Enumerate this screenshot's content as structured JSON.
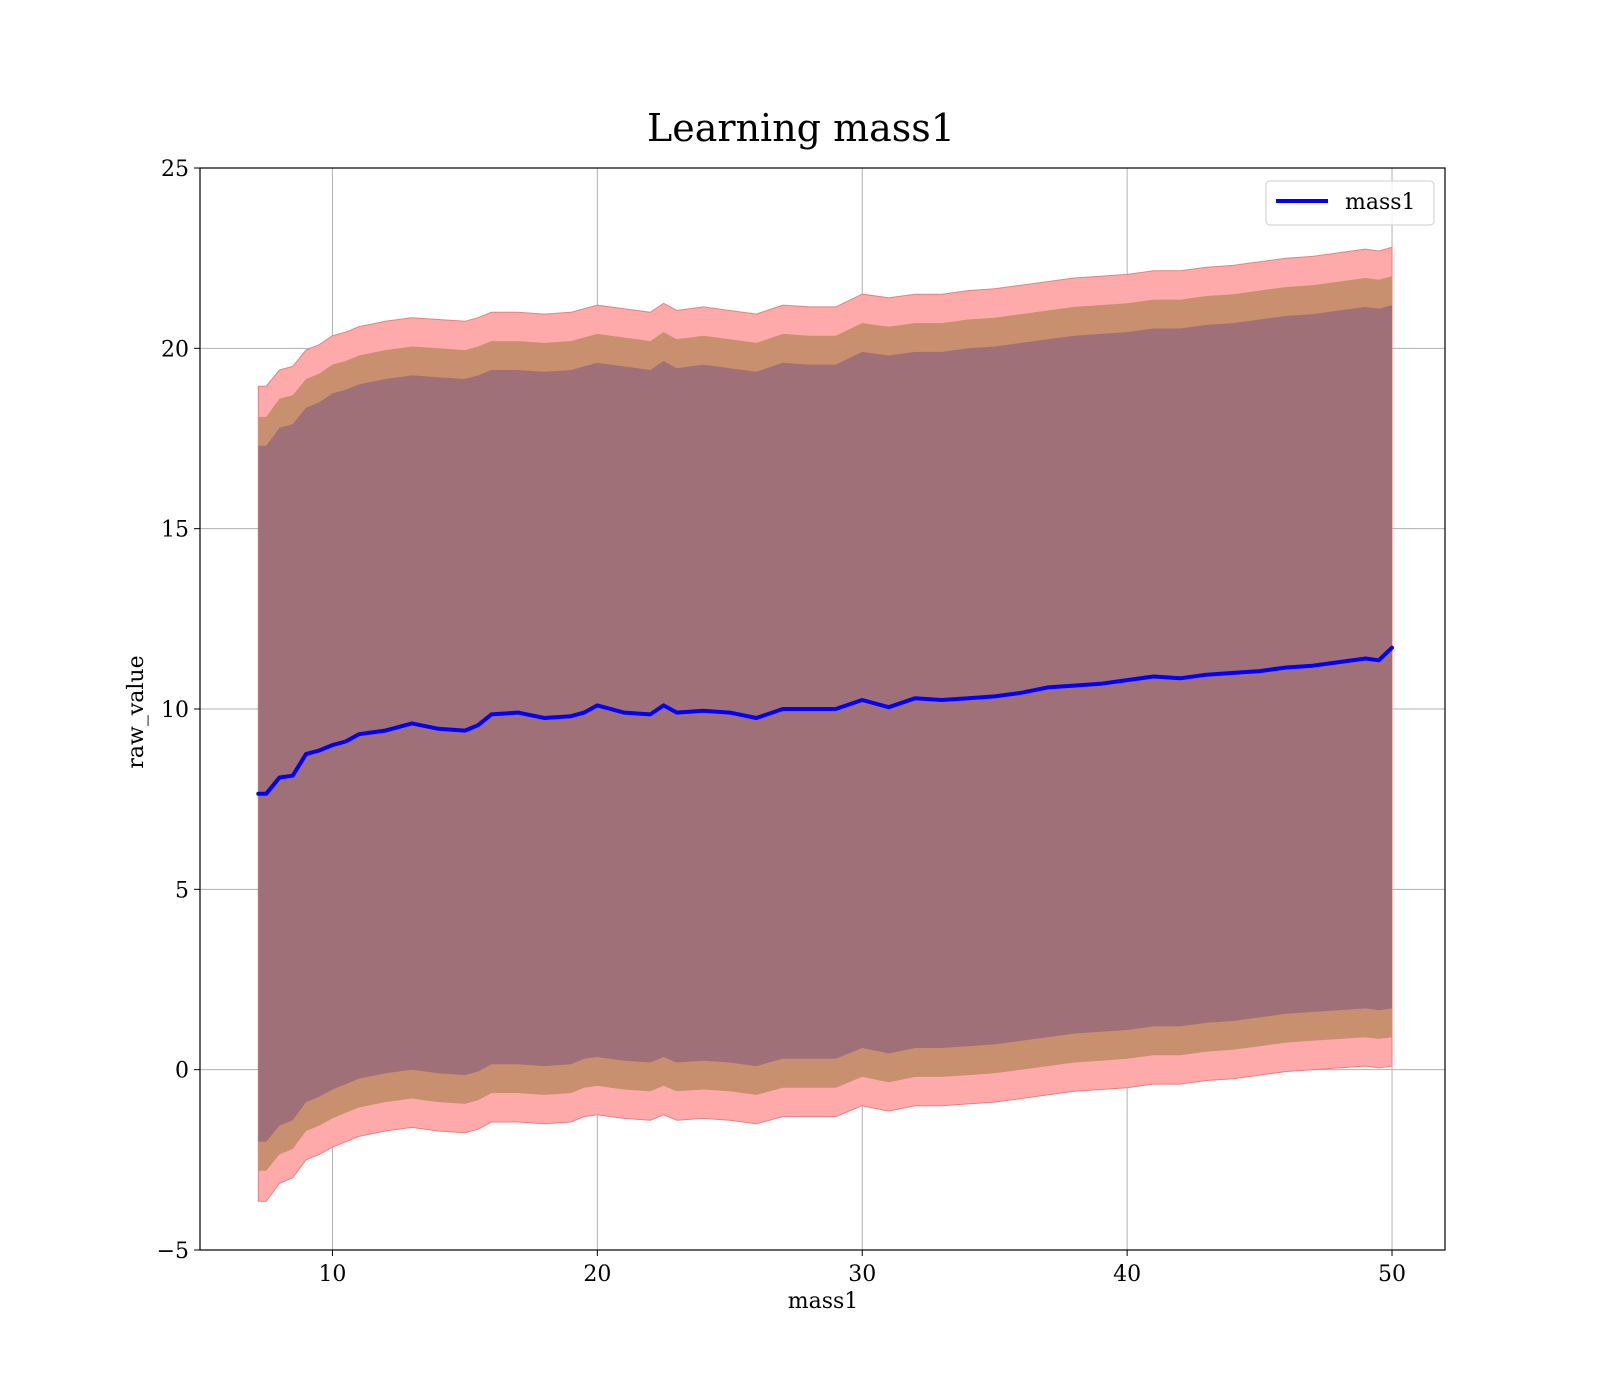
{
  "chart_data": {
    "type": "area",
    "title": "Learning mass1",
    "xlabel": "mass1",
    "ylabel": "raw_value",
    "xlim": [
      5,
      52
    ],
    "ylim": [
      -5,
      25
    ],
    "xticks": [
      10,
      20,
      30,
      40,
      50
    ],
    "yticks": [
      -5,
      0,
      5,
      10,
      15,
      20,
      25
    ],
    "xtick_labels": [
      "10",
      "20",
      "30",
      "40",
      "50"
    ],
    "ytick_labels": [
      "−5",
      "0",
      "5",
      "10",
      "15",
      "20",
      "25"
    ],
    "grid": true,
    "legend": {
      "position": "top-right",
      "entries": [
        "mass1"
      ]
    },
    "colors": {
      "line": "#0000ff",
      "band_3sigma": "#ffaaaa",
      "band_2sigma": "#c8906f",
      "band_1sigma": "#a07078",
      "band_edge": "#e88080"
    },
    "x": [
      7.2,
      7.5,
      8,
      8.5,
      9,
      9.5,
      10,
      10.5,
      11,
      12,
      13,
      14,
      15,
      15.5,
      16,
      17,
      18,
      19,
      19.5,
      20,
      21,
      22,
      22.5,
      23,
      24,
      25,
      26,
      27,
      28,
      29,
      30,
      31,
      32,
      33,
      34,
      35,
      36,
      37,
      38,
      39,
      40,
      41,
      42,
      43,
      44,
      45,
      46,
      47,
      48,
      49,
      49.5,
      50
    ],
    "series": [
      {
        "name": "mass1",
        "values": [
          7.65,
          7.65,
          8.1,
          8.15,
          8.75,
          8.85,
          9.0,
          9.1,
          9.3,
          9.4,
          9.6,
          9.45,
          9.4,
          9.55,
          9.85,
          9.9,
          9.75,
          9.8,
          9.9,
          10.1,
          9.9,
          9.85,
          10.1,
          9.9,
          9.95,
          9.9,
          9.75,
          10.0,
          10.0,
          10.0,
          10.25,
          10.05,
          10.3,
          10.25,
          10.3,
          10.35,
          10.45,
          10.6,
          10.65,
          10.7,
          10.8,
          10.9,
          10.85,
          10.95,
          11.0,
          11.05,
          11.15,
          11.2,
          11.3,
          11.4,
          11.35,
          11.7
        ]
      }
    ],
    "bands": [
      {
        "level": "3sigma",
        "upper": [
          18.95,
          18.95,
          19.4,
          19.5,
          19.95,
          20.1,
          20.35,
          20.45,
          20.6,
          20.75,
          20.85,
          20.8,
          20.75,
          20.85,
          21.0,
          21.0,
          20.95,
          21.0,
          21.1,
          21.2,
          21.1,
          21.0,
          21.25,
          21.05,
          21.15,
          21.05,
          20.95,
          21.2,
          21.15,
          21.15,
          21.5,
          21.4,
          21.5,
          21.5,
          21.6,
          21.65,
          21.75,
          21.85,
          21.95,
          22.0,
          22.05,
          22.15,
          22.15,
          22.25,
          22.3,
          22.4,
          22.5,
          22.55,
          22.65,
          22.75,
          22.7,
          22.8
        ],
        "lower": [
          -3.65,
          -3.65,
          -3.15,
          -3.0,
          -2.5,
          -2.35,
          -2.15,
          -2.0,
          -1.85,
          -1.7,
          -1.6,
          -1.7,
          -1.75,
          -1.65,
          -1.45,
          -1.45,
          -1.5,
          -1.45,
          -1.3,
          -1.25,
          -1.35,
          -1.4,
          -1.25,
          -1.4,
          -1.35,
          -1.4,
          -1.5,
          -1.3,
          -1.3,
          -1.3,
          -1.0,
          -1.15,
          -1.0,
          -1.0,
          -0.95,
          -0.9,
          -0.8,
          -0.7,
          -0.6,
          -0.55,
          -0.5,
          -0.4,
          -0.4,
          -0.3,
          -0.25,
          -0.15,
          -0.05,
          0.0,
          0.05,
          0.1,
          0.05,
          0.1
        ]
      },
      {
        "level": "2sigma",
        "upper": [
          18.1,
          18.1,
          18.6,
          18.7,
          19.15,
          19.3,
          19.55,
          19.65,
          19.8,
          19.95,
          20.05,
          20.0,
          19.95,
          20.05,
          20.2,
          20.2,
          20.15,
          20.2,
          20.3,
          20.4,
          20.3,
          20.2,
          20.45,
          20.25,
          20.35,
          20.25,
          20.15,
          20.4,
          20.35,
          20.35,
          20.7,
          20.6,
          20.7,
          20.7,
          20.8,
          20.85,
          20.95,
          21.05,
          21.15,
          21.2,
          21.25,
          21.35,
          21.35,
          21.45,
          21.5,
          21.6,
          21.7,
          21.75,
          21.85,
          21.95,
          21.9,
          22.0
        ],
        "lower": [
          -2.8,
          -2.8,
          -2.35,
          -2.2,
          -1.7,
          -1.55,
          -1.35,
          -1.2,
          -1.05,
          -0.9,
          -0.8,
          -0.9,
          -0.95,
          -0.85,
          -0.65,
          -0.65,
          -0.7,
          -0.65,
          -0.5,
          -0.45,
          -0.55,
          -0.6,
          -0.45,
          -0.6,
          -0.55,
          -0.6,
          -0.7,
          -0.5,
          -0.5,
          -0.5,
          -0.2,
          -0.35,
          -0.2,
          -0.2,
          -0.15,
          -0.1,
          0.0,
          0.1,
          0.2,
          0.25,
          0.3,
          0.4,
          0.4,
          0.5,
          0.55,
          0.65,
          0.75,
          0.8,
          0.85,
          0.9,
          0.85,
          0.9
        ]
      },
      {
        "level": "1sigma",
        "upper": [
          17.3,
          17.3,
          17.8,
          17.9,
          18.35,
          18.5,
          18.75,
          18.85,
          19.0,
          19.15,
          19.25,
          19.2,
          19.15,
          19.25,
          19.4,
          19.4,
          19.35,
          19.4,
          19.5,
          19.6,
          19.5,
          19.4,
          19.65,
          19.45,
          19.55,
          19.45,
          19.35,
          19.6,
          19.55,
          19.55,
          19.9,
          19.8,
          19.9,
          19.9,
          20.0,
          20.05,
          20.15,
          20.25,
          20.35,
          20.4,
          20.45,
          20.55,
          20.55,
          20.65,
          20.7,
          20.8,
          20.9,
          20.95,
          21.05,
          21.15,
          21.1,
          21.2
        ],
        "lower": [
          -2.0,
          -2.0,
          -1.55,
          -1.4,
          -0.9,
          -0.75,
          -0.55,
          -0.4,
          -0.25,
          -0.1,
          0.0,
          -0.1,
          -0.15,
          -0.05,
          0.15,
          0.15,
          0.1,
          0.15,
          0.3,
          0.35,
          0.25,
          0.2,
          0.35,
          0.2,
          0.25,
          0.2,
          0.1,
          0.3,
          0.3,
          0.3,
          0.6,
          0.45,
          0.6,
          0.6,
          0.65,
          0.7,
          0.8,
          0.9,
          1.0,
          1.05,
          1.1,
          1.2,
          1.2,
          1.3,
          1.35,
          1.45,
          1.55,
          1.6,
          1.65,
          1.7,
          1.65,
          1.7
        ]
      }
    ]
  }
}
